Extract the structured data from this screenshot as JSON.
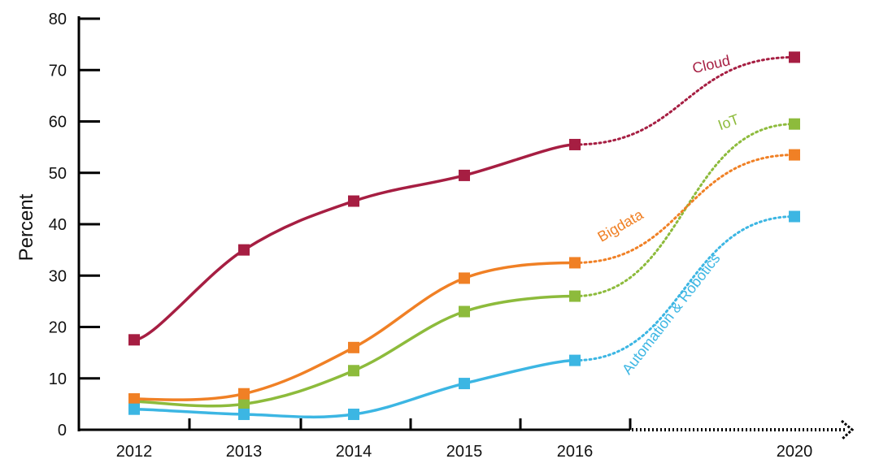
{
  "chart_data": {
    "type": "line",
    "title": "",
    "xlabel": "",
    "ylabel": "Percent",
    "ylim": [
      0,
      80
    ],
    "yticks": [
      "0",
      "10",
      "20",
      "30",
      "40",
      "50",
      "60",
      "70",
      "80"
    ],
    "xticks": [
      "2012",
      "2013",
      "2014",
      "2015",
      "2016",
      "2020"
    ],
    "x": [
      2012,
      2013,
      2014,
      2015,
      2016,
      2020
    ],
    "legend": "inline labels",
    "series": [
      {
        "name": "Cloud",
        "label": "Cloud",
        "color": "#a61e42",
        "values": [
          17.5,
          35,
          44.5,
          49.5,
          55.5,
          72.5
        ]
      },
      {
        "name": "IoT",
        "label": "IoT",
        "color": "#8dbb3c",
        "values": [
          5.5,
          5,
          11.5,
          23,
          26,
          59.5
        ]
      },
      {
        "name": "Bigdata",
        "label": "Bigdata",
        "color": "#f08025",
        "values": [
          6,
          7,
          16,
          29.5,
          32.5,
          53.5
        ]
      },
      {
        "name": "Automation & Robotics",
        "label": "Automation & Robotics",
        "color": "#3cb6e3",
        "values": [
          4,
          3,
          3,
          9,
          13.5,
          41.5
        ]
      }
    ]
  }
}
